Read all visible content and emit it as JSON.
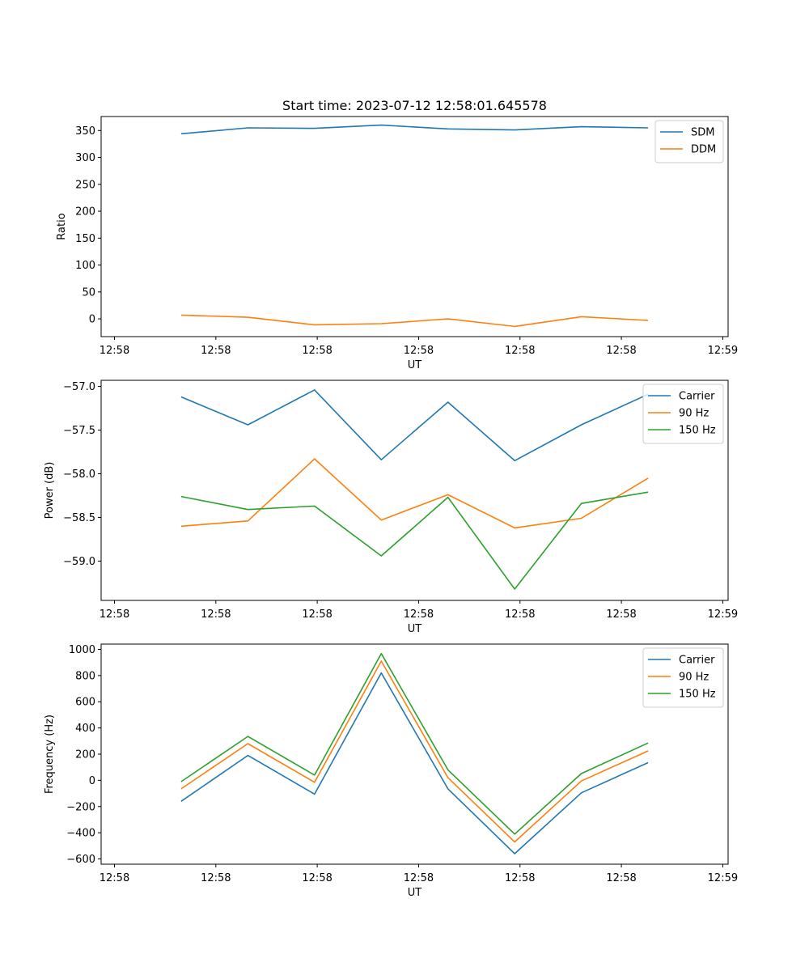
{
  "chart_data": [
    {
      "type": "line",
      "title": "Start time: 2023-07-12 12:58:01.645578",
      "xlabel": "UT",
      "ylabel": "Ratio",
      "x": [
        0.5,
        1,
        1.5,
        2,
        2.5,
        3,
        3.5,
        4
      ],
      "xlim": [
        -0.1,
        4.6
      ],
      "x_ticks": [
        0,
        0.76,
        1.52,
        2.28,
        3.04,
        3.8,
        4.56
      ],
      "x_tick_labels": [
        "12:58",
        "12:58",
        "12:58",
        "12:58",
        "12:58",
        "12:58",
        "12:59"
      ],
      "ylim": [
        -33,
        376
      ],
      "y_ticks": [
        0,
        50,
        100,
        150,
        200,
        250,
        300,
        350
      ],
      "y_tick_labels": [
        "0",
        "50",
        "100",
        "150",
        "200",
        "250",
        "300",
        "350"
      ],
      "legend_position": "top-right",
      "series": [
        {
          "name": "SDM",
          "color": "#1f77b4",
          "values": [
            344,
            355,
            354,
            360,
            353,
            351,
            357,
            355
          ]
        },
        {
          "name": "DDM",
          "color": "#ff7f0e",
          "values": [
            7,
            3,
            -11,
            -9,
            0,
            -14,
            4,
            -3
          ]
        }
      ]
    },
    {
      "type": "line",
      "title": "",
      "xlabel": "UT",
      "ylabel": "Power (dB)",
      "x": [
        0.5,
        1,
        1.5,
        2,
        2.5,
        3,
        3.5,
        4
      ],
      "xlim": [
        -0.1,
        4.6
      ],
      "x_ticks": [
        0,
        0.76,
        1.52,
        2.28,
        3.04,
        3.8,
        4.56
      ],
      "x_tick_labels": [
        "12:58",
        "12:58",
        "12:58",
        "12:58",
        "12:58",
        "12:58",
        "12:59"
      ],
      "ylim": [
        -59.45,
        -56.93
      ],
      "y_ticks": [
        -59.0,
        -58.5,
        -58.0,
        -57.5,
        -57.0
      ],
      "y_tick_labels": [
        "−59.0",
        "−58.5",
        "−58.0",
        "−57.5",
        "−57.0"
      ],
      "legend_position": "top-right",
      "series": [
        {
          "name": "Carrier",
          "color": "#1f77b4",
          "values": [
            -57.12,
            -57.44,
            -57.04,
            -57.84,
            -57.18,
            -57.85,
            -57.44,
            -57.09
          ]
        },
        {
          "name": "90 Hz",
          "color": "#ff7f0e",
          "values": [
            -58.6,
            -58.54,
            -57.83,
            -58.53,
            -58.24,
            -58.62,
            -58.51,
            -58.05
          ]
        },
        {
          "name": "150 Hz",
          "color": "#2ca02c",
          "values": [
            -58.26,
            -58.41,
            -58.37,
            -58.94,
            -58.27,
            -59.32,
            -58.34,
            -58.21
          ]
        }
      ]
    },
    {
      "type": "line",
      "title": "",
      "xlabel": "UT",
      "ylabel": "Frequency (Hz)",
      "x": [
        0.5,
        1,
        1.5,
        2,
        2.5,
        3,
        3.5,
        4
      ],
      "xlim": [
        -0.1,
        4.6
      ],
      "x_ticks": [
        0,
        0.76,
        1.52,
        2.28,
        3.04,
        3.8,
        4.56
      ],
      "x_tick_labels": [
        "12:58",
        "12:58",
        "12:58",
        "12:58",
        "12:58",
        "12:58",
        "12:59"
      ],
      "ylim": [
        -640,
        1040
      ],
      "y_ticks": [
        -600,
        -400,
        -200,
        0,
        200,
        400,
        600,
        800,
        1000
      ],
      "y_tick_labels": [
        "−600",
        "−400",
        "−200",
        "0",
        "200",
        "400",
        "600",
        "800",
        "1000"
      ],
      "legend_position": "top-right",
      "series": [
        {
          "name": "Carrier",
          "color": "#1f77b4",
          "values": [
            -160,
            190,
            -105,
            820,
            -65,
            -560,
            -95,
            135
          ]
        },
        {
          "name": "90 Hz",
          "color": "#ff7f0e",
          "values": [
            -65,
            280,
            -15,
            910,
            20,
            -470,
            -5,
            225
          ]
        },
        {
          "name": "150 Hz",
          "color": "#2ca02c",
          "values": [
            -10,
            335,
            40,
            968,
            80,
            -410,
            52,
            285
          ]
        }
      ]
    }
  ]
}
